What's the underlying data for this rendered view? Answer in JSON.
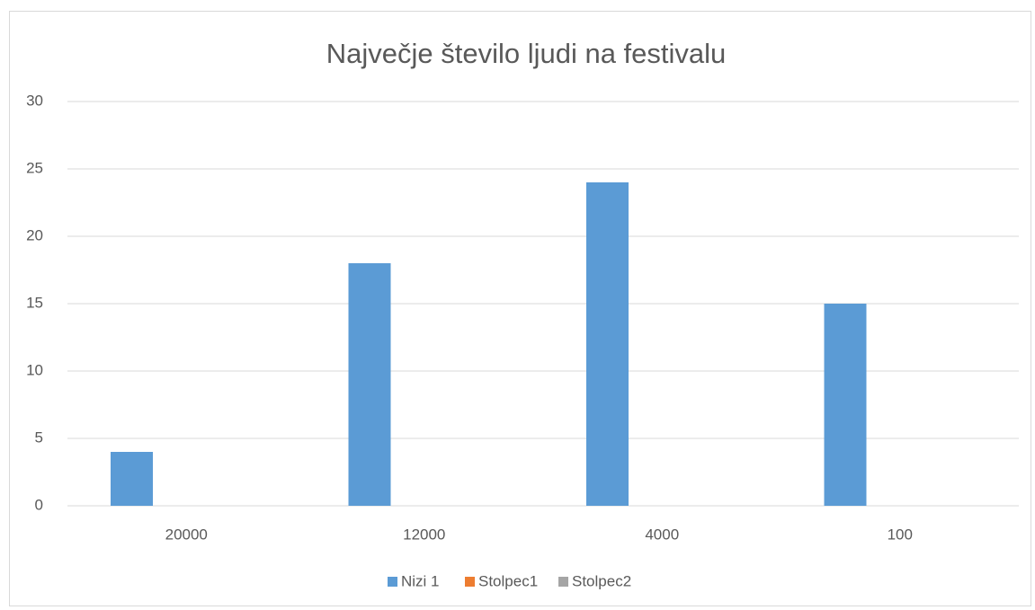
{
  "chart_data": {
    "type": "bar",
    "title": "Največje število ljudi na festivalu",
    "categories": [
      "20000",
      "12000",
      "4000",
      "100"
    ],
    "series": [
      {
        "name": "Nizi 1",
        "color": "#5b9bd5",
        "values": [
          4,
          18,
          24,
          15
        ]
      },
      {
        "name": "Stolpec1",
        "color": "#ed7d31",
        "values": [
          null,
          null,
          null,
          null
        ]
      },
      {
        "name": "Stolpec2",
        "color": "#a5a5a5",
        "values": [
          null,
          null,
          null,
          null
        ]
      }
    ],
    "ylim": [
      0,
      30
    ],
    "yticks": [
      0,
      5,
      10,
      15,
      20,
      25,
      30
    ],
    "grid": true,
    "legend": "bottom"
  }
}
